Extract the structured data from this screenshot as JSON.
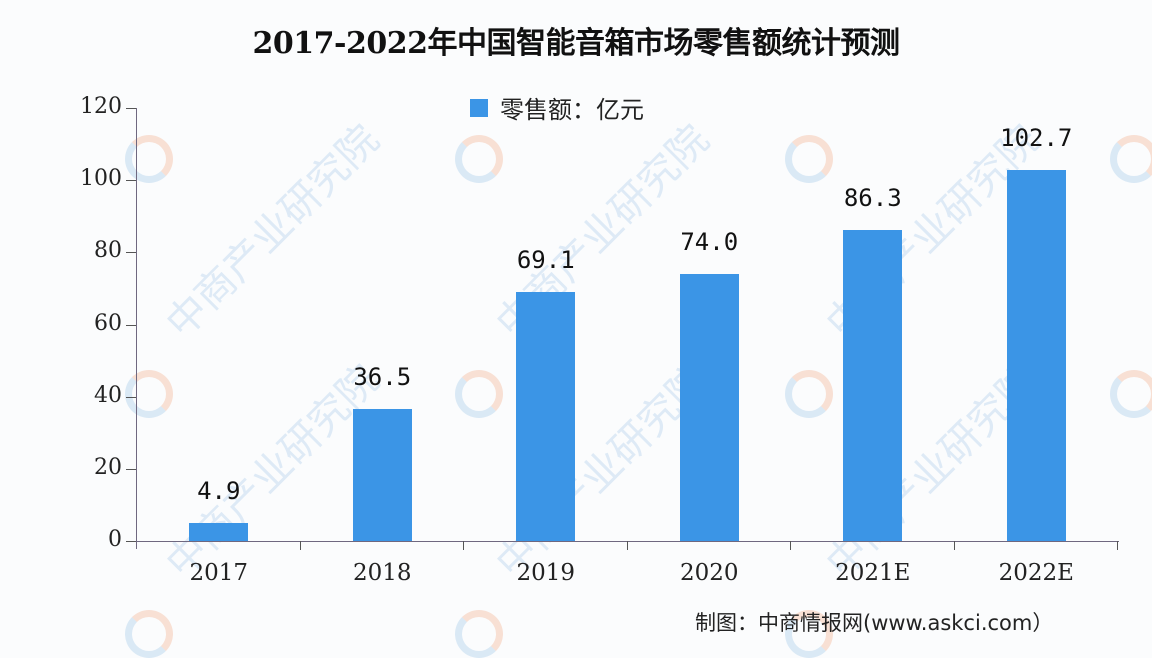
{
  "chart_data": {
    "type": "bar",
    "title": "2017-2022年中国智能音箱市场零售额统计预测",
    "categories": [
      "2017",
      "2018",
      "2019",
      "2020",
      "2021E",
      "2022E"
    ],
    "series": [
      {
        "name": "零售额：亿元",
        "values": [
          4.9,
          36.5,
          69.1,
          74.0,
          86.3,
          102.7
        ],
        "color": "#3b95e6"
      }
    ],
    "value_labels": [
      "4.9",
      "36.5",
      "69.1",
      "74.0",
      "86.3",
      "102.7"
    ],
    "xlabel": "",
    "ylabel": "",
    "ylim": [
      0,
      120
    ],
    "yticks": [
      "0",
      "20",
      "40",
      "60",
      "80",
      "100",
      "120"
    ],
    "grid": false,
    "legend_position": "top-center"
  },
  "legend": {
    "label": "零售额：亿元"
  },
  "source": "制图：中商情报网(www.askci.com）",
  "watermark": "中商产业研究院"
}
